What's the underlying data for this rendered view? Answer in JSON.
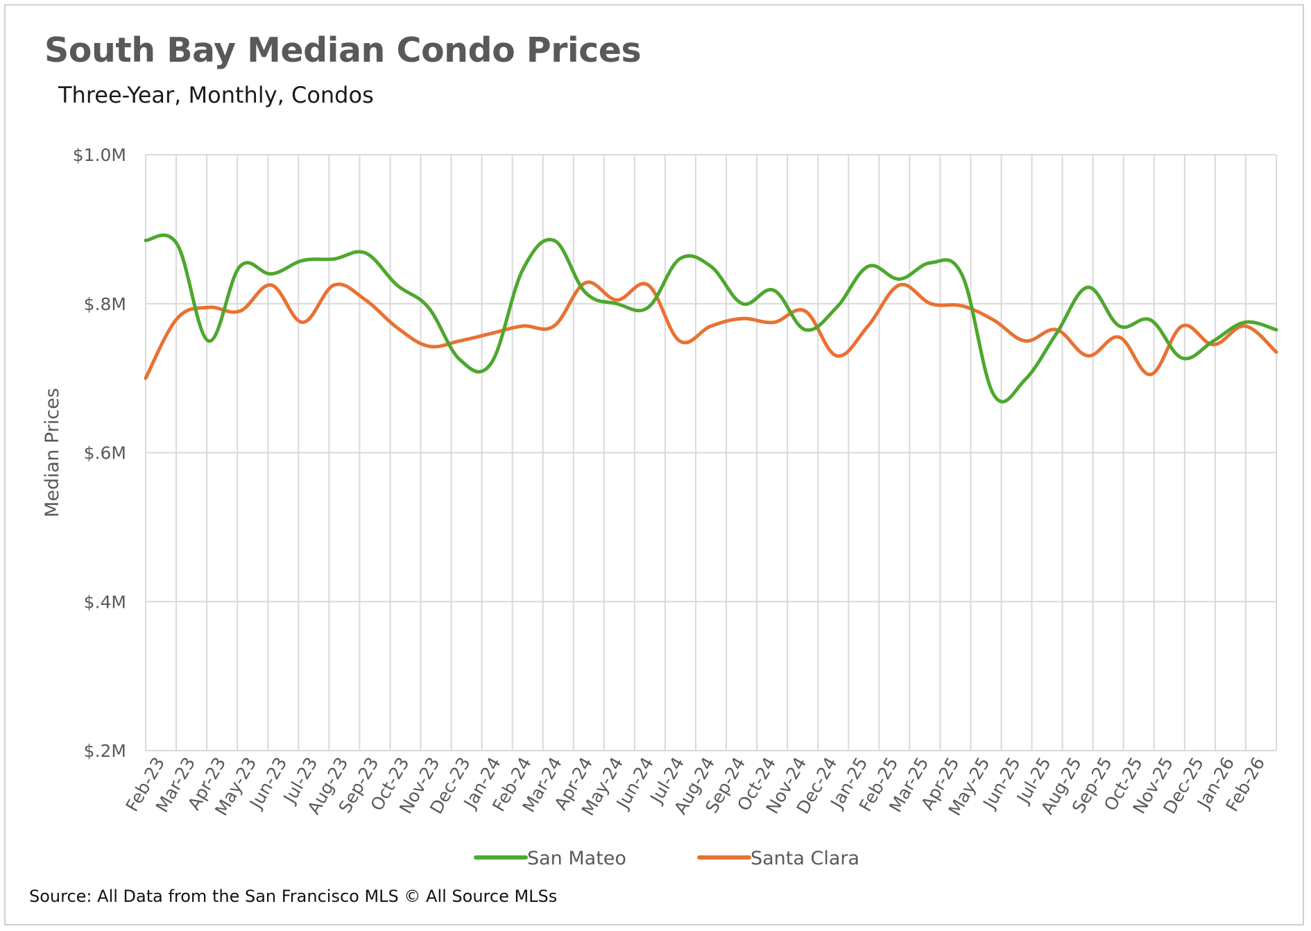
{
  "chart_data": {
    "type": "line",
    "title": "South Bay Median Condo Prices",
    "subtitle": "Three-Year, Monthly, Condos",
    "ylabel": "Median Prices",
    "xlabel": "",
    "ylim": [
      200000,
      1000000
    ],
    "yticks": [
      {
        "value": 200000,
        "label": "$.2M"
      },
      {
        "value": 400000,
        "label": "$.4M"
      },
      {
        "value": 600000,
        "label": "$.6M"
      },
      {
        "value": 800000,
        "label": "$.8M"
      },
      {
        "value": 1000000,
        "label": "$1.0M"
      }
    ],
    "grid": true,
    "legend_position": "bottom",
    "x": [
      "Feb-23",
      "Mar-23",
      "Apr-23",
      "May-23",
      "Jun-23",
      "Jul-23",
      "Aug-23",
      "Sep-23",
      "Oct-23",
      "Nov-23",
      "Dec-23",
      "Jan-24",
      "Feb-24",
      "Mar-24",
      "Apr-24",
      "May-24",
      "Jun-24",
      "Jul-24",
      "Aug-24",
      "Sep-24",
      "Oct-24",
      "Nov-24",
      "Dec-24",
      "Jan-25",
      "Feb-25",
      "Mar-25",
      "Apr-25",
      "May-25",
      "Jun-25",
      "Jul-25",
      "Aug-25",
      "Sep-25",
      "Oct-25",
      "Nov-25",
      "Dec-25",
      "Jan-26",
      "Feb-26"
    ],
    "series": [
      {
        "name": "San Mateo",
        "color": "#4ea72e",
        "values": [
          885000,
          880000,
          750000,
          850000,
          840000,
          858000,
          860000,
          868000,
          825000,
          795000,
          725000,
          720000,
          845000,
          885000,
          815000,
          800000,
          795000,
          860000,
          850000,
          800000,
          818000,
          765000,
          795000,
          850000,
          833000,
          855000,
          838000,
          678000,
          698000,
          760000,
          822000,
          770000,
          778000,
          727000,
          750000,
          775000,
          765000
        ]
      },
      {
        "name": "Santa Clara",
        "color": "#e97132",
        "values": [
          700000,
          780000,
          795000,
          790000,
          825000,
          775000,
          825000,
          805000,
          768000,
          743000,
          750000,
          760000,
          770000,
          770000,
          828000,
          805000,
          825000,
          750000,
          770000,
          780000,
          775000,
          790000,
          730000,
          770000,
          825000,
          800000,
          797000,
          778000,
          750000,
          765000,
          730000,
          755000,
          705000,
          770000,
          745000,
          770000,
          735000
        ]
      }
    ]
  },
  "source": "Source: All Data from the San Francisco MLS © All Source MLSs"
}
